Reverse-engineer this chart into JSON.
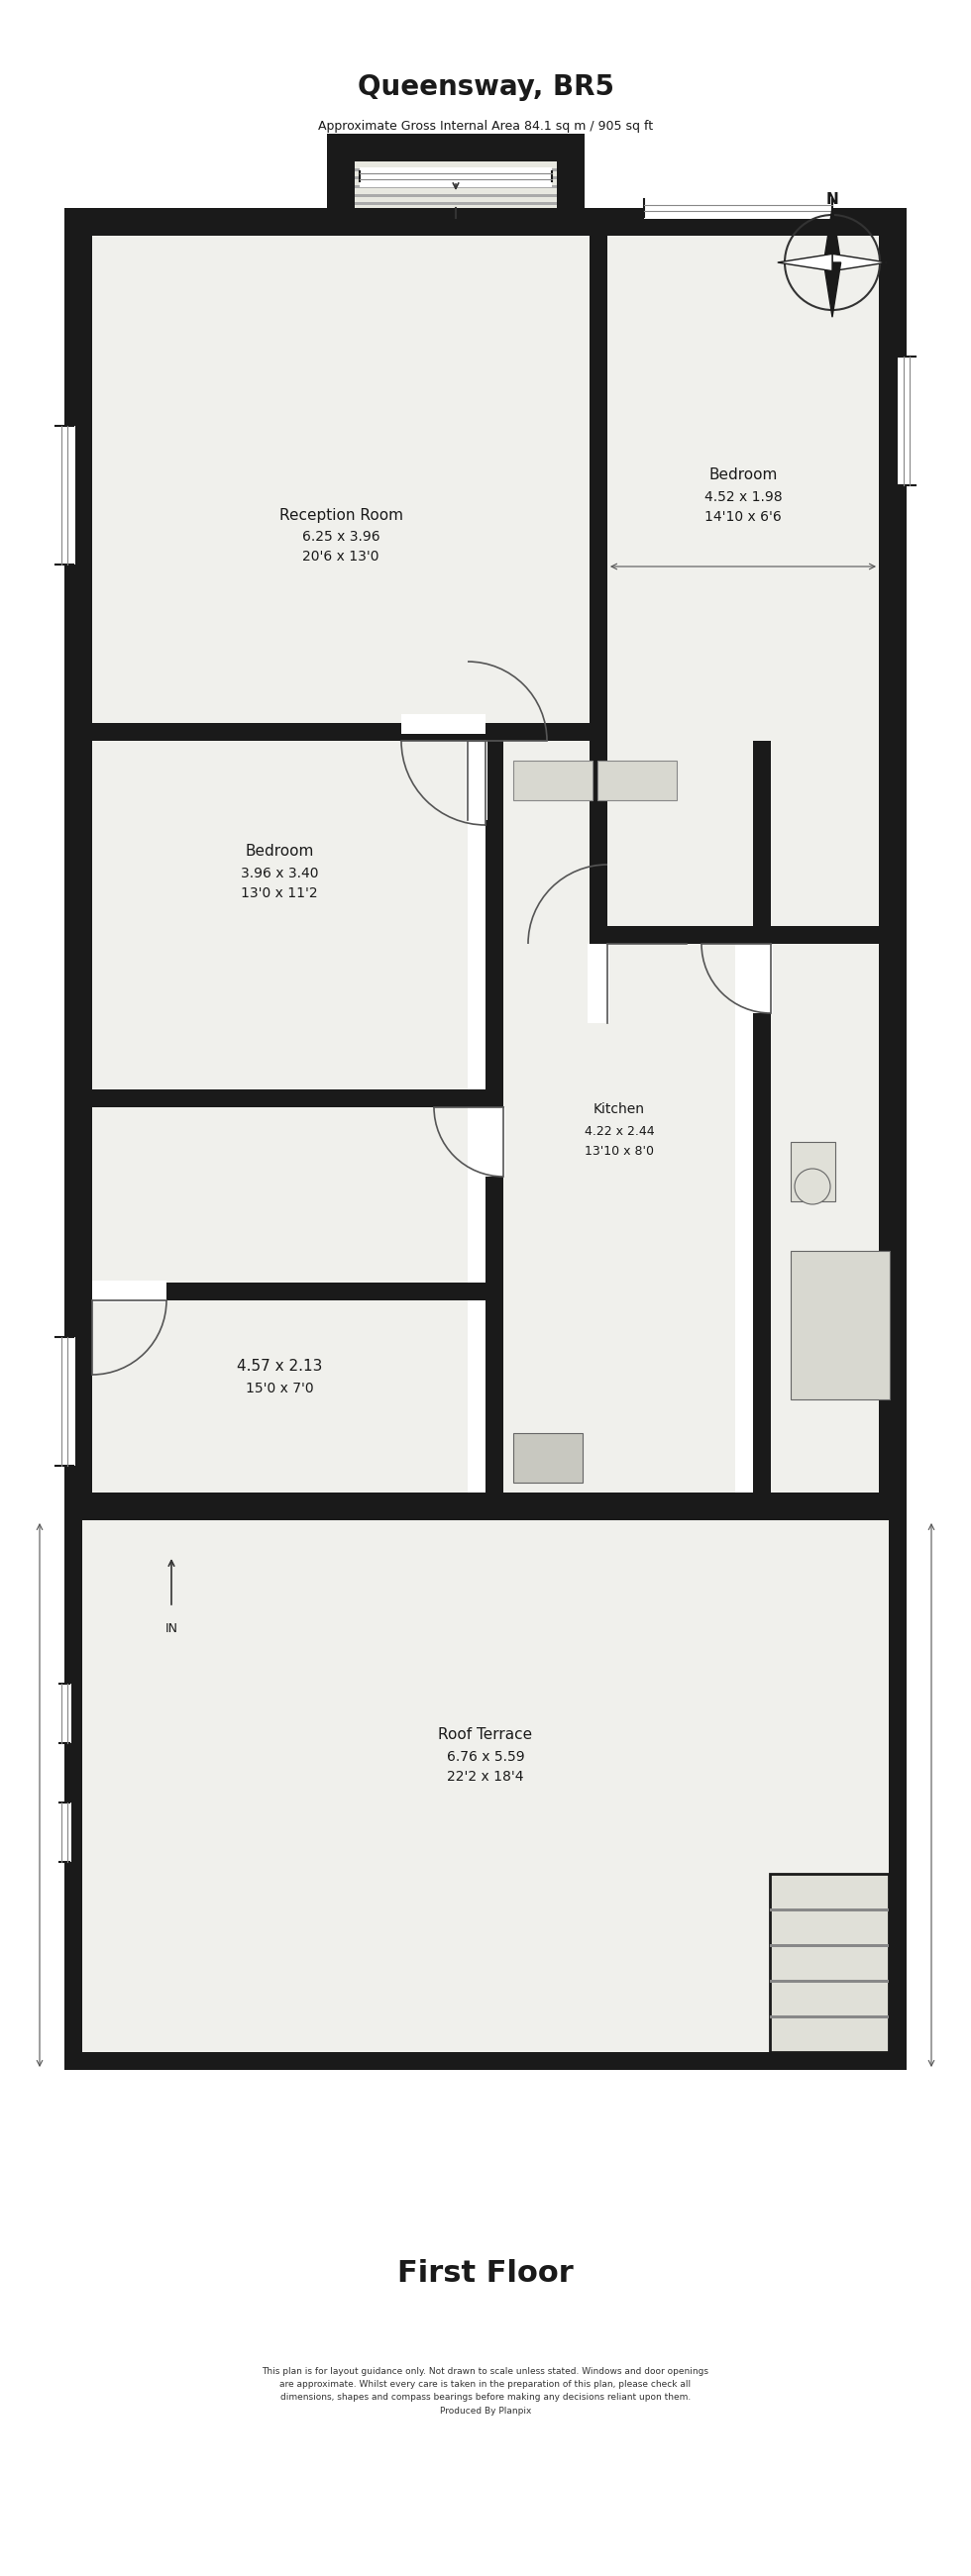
{
  "title": "Queensway, BR5",
  "subtitle": "Approximate Gross Internal Area 84.1 sq m / 905 sq ft",
  "floor_label": "First Floor",
  "disclaimer": "This plan is for layout guidance only. Not drawn to scale unless stated. Windows and door openings\nare approximate. Whilst every care is taken in the preparation of this plan, please check all\ndimensions, shapes and compass bearings before making any decisions reliant upon them.\nProduced By Planpix",
  "bg_color": "#ffffff",
  "wall_color": "#1a1a1a",
  "room_fill": "#f0f0ec",
  "title_fontsize": 20,
  "subtitle_fontsize": 9,
  "floor_label_fontsize": 22,
  "disclaimer_fontsize": 6.5
}
